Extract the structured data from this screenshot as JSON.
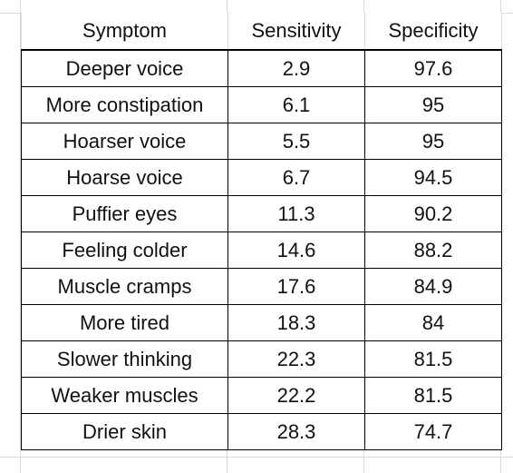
{
  "table": {
    "columns": [
      "Symptom",
      "Sensitivity",
      "Specificity"
    ],
    "rows": [
      {
        "symptom": "Deeper voice",
        "sensitivity": "2.9",
        "specificity": "97.6"
      },
      {
        "symptom": "More constipation",
        "sensitivity": "6.1",
        "specificity": "95"
      },
      {
        "symptom": "Hoarser voice",
        "sensitivity": "5.5",
        "specificity": "95"
      },
      {
        "symptom": "Hoarse voice",
        "sensitivity": "6.7",
        "specificity": "94.5"
      },
      {
        "symptom": "Puffier eyes",
        "sensitivity": "11.3",
        "specificity": "90.2"
      },
      {
        "symptom": "Feeling colder",
        "sensitivity": "14.6",
        "specificity": "88.2"
      },
      {
        "symptom": "Muscle cramps",
        "sensitivity": "17.6",
        "specificity": "84.9"
      },
      {
        "symptom": "More tired",
        "sensitivity": "18.3",
        "specificity": "84"
      },
      {
        "symptom": "Slower thinking",
        "sensitivity": "22.3",
        "specificity": "81.5"
      },
      {
        "symptom": "Weaker muscles",
        "sensitivity": "22.2",
        "specificity": "81.5"
      },
      {
        "symptom": "Drier skin",
        "sensitivity": "28.3",
        "specificity": "74.7"
      }
    ]
  }
}
